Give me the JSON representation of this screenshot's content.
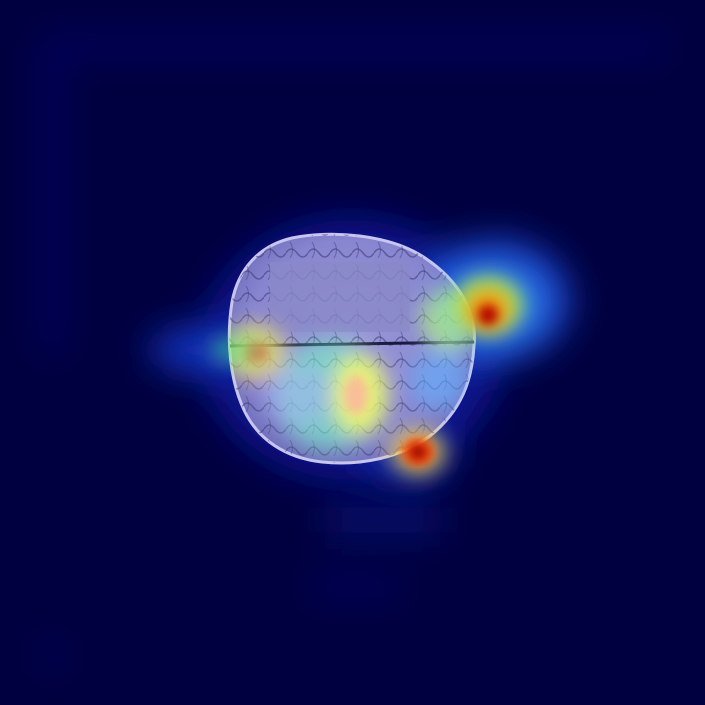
{
  "image": {
    "kind": "brain MRI axial slice with heatmap overlay",
    "colormap": "jet",
    "colors": {
      "background": "#000040",
      "low": "#00008b",
      "mid_low": "#3b6bff",
      "mid": "#7fffd0",
      "mid_high": "#ffff40",
      "high": "#ff3000",
      "peak": "#8b0000"
    }
  }
}
